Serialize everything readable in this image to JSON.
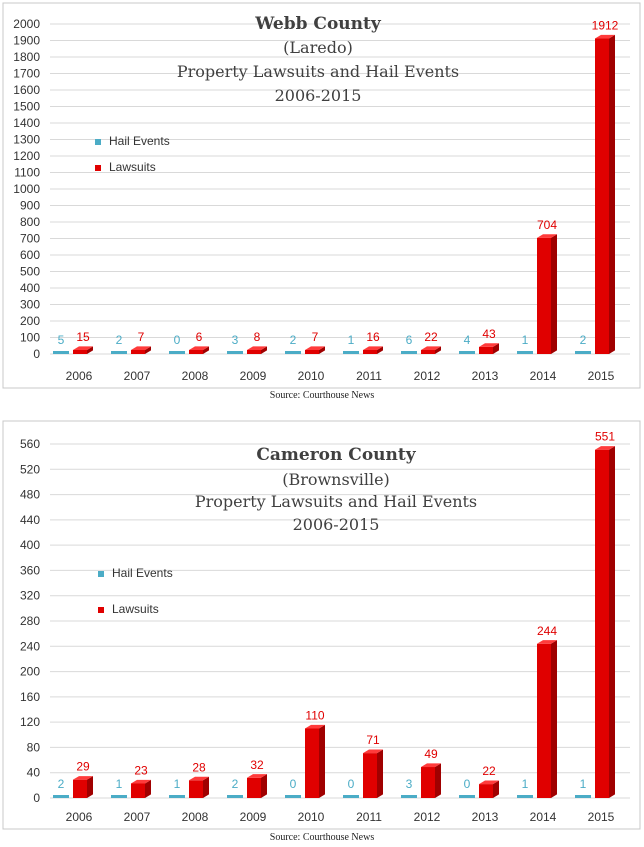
{
  "colors": {
    "hail": "#4bacc6",
    "lawsuits": "#e00000",
    "lawsuits_dark": "#a00000",
    "lawsuits_top": "#ff3b3b"
  },
  "chart_data": [
    {
      "type": "bar",
      "title_lines": [
        "Webb County",
        "(Laredo)",
        "Property Lawsuits and Hail Events",
        "2006-2015"
      ],
      "categories": [
        "2006",
        "2007",
        "2008",
        "2009",
        "2010",
        "2011",
        "2012",
        "2013",
        "2014",
        "2015"
      ],
      "series": [
        {
          "name": "Hail Events",
          "values": [
            5,
            2,
            0,
            3,
            2,
            1,
            6,
            4,
            1,
            2
          ]
        },
        {
          "name": "Lawsuits",
          "values": [
            15,
            7,
            6,
            8,
            7,
            16,
            22,
            43,
            704,
            1912
          ]
        }
      ],
      "ylim": [
        0,
        2000
      ],
      "yticks": [
        "0",
        "100",
        "200",
        "300",
        "400",
        "500",
        "600",
        "700",
        "800",
        "900",
        "1000",
        "1100",
        "1200",
        "1300",
        "1400",
        "1500",
        "1600",
        "1700",
        "1800",
        "1900",
        "2000"
      ],
      "grid": true,
      "legend": "top-left"
    },
    {
      "type": "bar",
      "title_lines": [
        "Cameron County",
        "(Brownsville)",
        "Property Lawsuits and Hail Events",
        "2006-2015"
      ],
      "categories": [
        "2006",
        "2007",
        "2008",
        "2009",
        "2010",
        "2011",
        "2012",
        "2013",
        "2014",
        "2015"
      ],
      "series": [
        {
          "name": "Hail Events",
          "values": [
            2,
            1,
            1,
            2,
            0,
            0,
            3,
            0,
            1,
            1
          ]
        },
        {
          "name": "Lawsuits",
          "values": [
            29,
            23,
            28,
            32,
            110,
            71,
            49,
            22,
            244,
            551
          ]
        }
      ],
      "ylim": [
        0,
        560
      ],
      "yticks": [
        "0",
        "40",
        "80",
        "120",
        "160",
        "200",
        "240",
        "280",
        "320",
        "360",
        "400",
        "440",
        "480",
        "520",
        "560"
      ],
      "grid": true,
      "legend": "top-left"
    }
  ],
  "sources": [
    "Source: Courthouse News",
    "Source: Courthouse News"
  ]
}
